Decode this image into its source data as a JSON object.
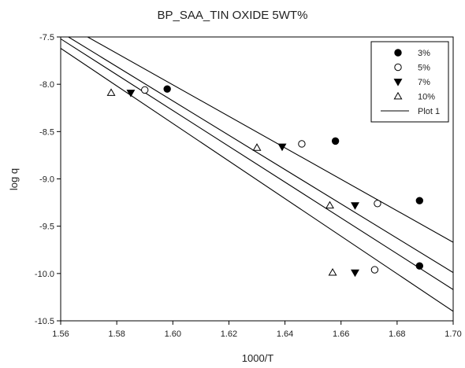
{
  "chart_data": {
    "type": "scatter",
    "title": "BP_SAA_TIN OXIDE 5WT%",
    "xlabel": "1000/T",
    "ylabel": "log q",
    "xlim": [
      1.56,
      1.7
    ],
    "ylim": [
      -10.5,
      -7.5
    ],
    "xticks": [
      1.56,
      1.58,
      1.6,
      1.62,
      1.64,
      1.66,
      1.68,
      1.7
    ],
    "xtick_labels": [
      "1.56",
      "1.58",
      "1.60",
      "1.62",
      "1.64",
      "1.66",
      "1.68",
      "1.70"
    ],
    "yticks": [
      -7.5,
      -8.0,
      -8.5,
      -9.0,
      -9.5,
      -10.0,
      -10.5
    ],
    "ytick_labels": [
      "-7.5",
      "-8.0",
      "-8.5",
      "-9.0",
      "-9.5",
      "-10.0",
      "-10.5"
    ],
    "grid": false,
    "legend_position": "top-right",
    "series": [
      {
        "name": "3%",
        "marker": "filled-circle",
        "points": [
          {
            "x": 1.598,
            "y": -8.05
          },
          {
            "x": 1.658,
            "y": -8.6
          },
          {
            "x": 1.688,
            "y": -9.23
          },
          {
            "x": 1.688,
            "y": -9.92
          }
        ]
      },
      {
        "name": "5%",
        "marker": "open-circle",
        "points": [
          {
            "x": 1.59,
            "y": -8.06
          },
          {
            "x": 1.646,
            "y": -8.63
          },
          {
            "x": 1.673,
            "y": -9.26
          },
          {
            "x": 1.672,
            "y": -9.96
          }
        ]
      },
      {
        "name": "7%",
        "marker": "filled-triangle-down",
        "points": [
          {
            "x": 1.585,
            "y": -8.09
          },
          {
            "x": 1.639,
            "y": -8.66
          },
          {
            "x": 1.665,
            "y": -9.28
          },
          {
            "x": 1.665,
            "y": -9.99
          }
        ]
      },
      {
        "name": "10%",
        "marker": "open-triangle-up",
        "points": [
          {
            "x": 1.578,
            "y": -8.09
          },
          {
            "x": 1.63,
            "y": -8.67
          },
          {
            "x": 1.656,
            "y": -9.28
          },
          {
            "x": 1.657,
            "y": -9.99
          }
        ]
      }
    ],
    "fit_lines_legend": "Plot 1",
    "fit_lines": [
      {
        "x1": 1.56,
        "y1": -7.34,
        "x2": 1.7,
        "y2": -9.67
      },
      {
        "x1": 1.56,
        "y1": -7.45,
        "x2": 1.7,
        "y2": -9.99
      },
      {
        "x1": 1.56,
        "y1": -7.52,
        "x2": 1.7,
        "y2": -10.17
      },
      {
        "x1": 1.56,
        "y1": -7.62,
        "x2": 1.7,
        "y2": -10.4
      }
    ]
  }
}
